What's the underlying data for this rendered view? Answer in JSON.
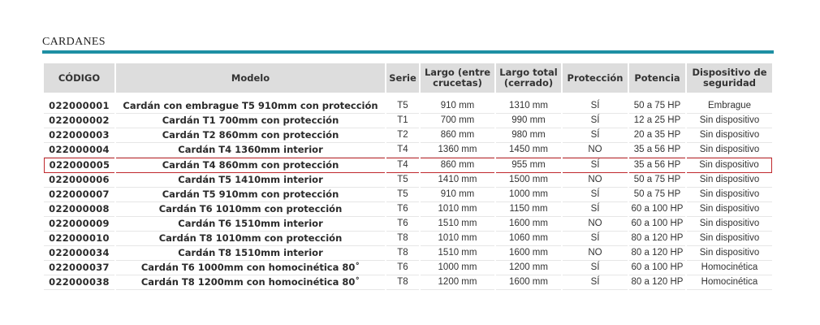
{
  "section_title": "CARDANES",
  "table": {
    "headers": {
      "codigo": "CÓDIGO",
      "modelo": "Modelo",
      "serie": "Serie",
      "largo_crucetas": "Largo (entre crucetas)",
      "largo_total": "Largo total (cerrado)",
      "proteccion": "Protección",
      "potencia": "Potencia",
      "dispositivo": "Dispositivo de seguridad"
    },
    "highlighted_code": "022000005",
    "rows": [
      {
        "code": "022000001",
        "model": "Cardán con embrague T5 910mm con protección",
        "serie": "T5",
        "largo": "910 mm",
        "total": "1310 mm",
        "proteccion": "SÍ",
        "potencia": "50 a 75 HP",
        "dispositivo": "Embrague"
      },
      {
        "code": "022000002",
        "model": "Cardán T1 700mm con protección",
        "serie": "T1",
        "largo": "700 mm",
        "total": "990 mm",
        "proteccion": "SÍ",
        "potencia": "12 a 25 HP",
        "dispositivo": "Sin dispositivo"
      },
      {
        "code": "022000003",
        "model": "Cardán T2 860mm con protección",
        "serie": "T2",
        "largo": "860 mm",
        "total": "980 mm",
        "proteccion": "SÍ",
        "potencia": "20 a 35 HP",
        "dispositivo": "Sin dispositivo"
      },
      {
        "code": "022000004",
        "model": "Cardán T4 1360mm interior",
        "serie": "T4",
        "largo": "1360 mm",
        "total": "1450 mm",
        "proteccion": "NO",
        "potencia": "35 a 56 HP",
        "dispositivo": "Sin dispositivo"
      },
      {
        "code": "022000005",
        "model": "Cardán T4 860mm con protección",
        "serie": "T4",
        "largo": "860 mm",
        "total": "955 mm",
        "proteccion": "SÍ",
        "potencia": "35 a 56 HP",
        "dispositivo": "Sin dispositivo"
      },
      {
        "code": "022000006",
        "model": "Cardán T5 1410mm interior",
        "serie": "T5",
        "largo": "1410 mm",
        "total": "1500 mm",
        "proteccion": "NO",
        "potencia": "50 a 75 HP",
        "dispositivo": "Sin dispositivo"
      },
      {
        "code": "022000007",
        "model": "Cardán T5 910mm con protección",
        "serie": "T5",
        "largo": "910 mm",
        "total": "1000 mm",
        "proteccion": "SÍ",
        "potencia": "50 a 75 HP",
        "dispositivo": "Sin dispositivo"
      },
      {
        "code": "022000008",
        "model": "Cardán T6 1010mm con protección",
        "serie": "T6",
        "largo": "1010 mm",
        "total": "1150 mm",
        "proteccion": "SÍ",
        "potencia": "60 a 100 HP",
        "dispositivo": "Sin dispositivo"
      },
      {
        "code": "022000009",
        "model": "Cardán T6 1510mm interior",
        "serie": "T6",
        "largo": "1510 mm",
        "total": "1600 mm",
        "proteccion": "NO",
        "potencia": "60 a 100 HP",
        "dispositivo": "Sin dispositivo"
      },
      {
        "code": "022000010",
        "model": "Cardán T8 1010mm con protección",
        "serie": "T8",
        "largo": "1010 mm",
        "total": "1060 mm",
        "proteccion": "SÍ",
        "potencia": "80 a 120 HP",
        "dispositivo": "Sin dispositivo"
      },
      {
        "code": "022000034",
        "model": "Cardán T8 1510mm interior",
        "serie": "T8",
        "largo": "1510 mm",
        "total": "1600 mm",
        "proteccion": "NO",
        "potencia": "80 a 120 HP",
        "dispositivo": "Sin dispositivo"
      },
      {
        "code": "022000037",
        "model": "Cardán T6 1000mm con homocinética 80˚",
        "serie": "T6",
        "largo": "1000 mm",
        "total": "1200 mm",
        "proteccion": "SÍ",
        "potencia": "60 a 100 HP",
        "dispositivo": "Homocinética"
      },
      {
        "code": "022000038",
        "model": "Cardán T8 1200mm con homocinética 80˚",
        "serie": "T8",
        "largo": "1200 mm",
        "total": "1600 mm",
        "proteccion": "SÍ",
        "potencia": "80 a 120 HP",
        "dispositivo": "Homocinética"
      }
    ]
  },
  "colors": {
    "accent_rule": "#1e8fa3",
    "header_bg": "#dddddd",
    "highlight_border": "#c0282d"
  }
}
